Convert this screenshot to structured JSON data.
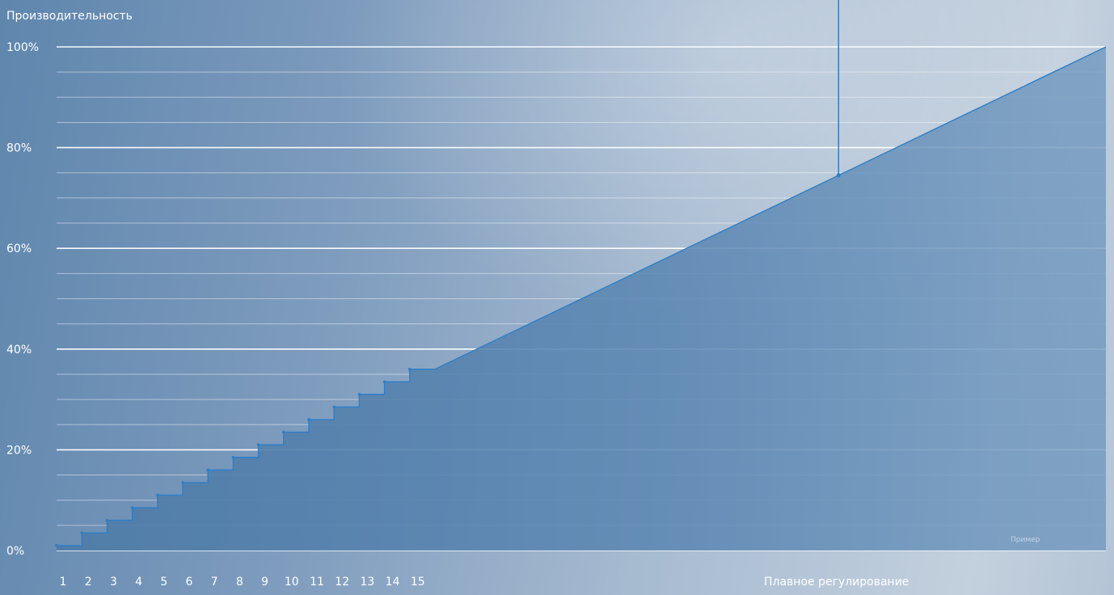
{
  "chart_data": {
    "type": "area",
    "title": "",
    "ylabel": "Производительность",
    "xlabel": "Плавное регулирование",
    "ylim": [
      0,
      100
    ],
    "yticks": [
      "0%",
      "20%",
      "40%",
      "60%",
      "80%",
      "100%"
    ],
    "step_labels": [
      "1",
      "2",
      "3",
      "4",
      "5",
      "6",
      "7",
      "8",
      "9",
      "10",
      "11",
      "12",
      "13",
      "14",
      "15"
    ],
    "step_values": [
      1,
      3.5,
      6,
      8.5,
      11,
      13.5,
      16,
      18.5,
      21,
      23.5,
      26,
      28.5,
      31,
      33.5,
      36
    ],
    "linear_segment": {
      "from": 36,
      "to": 100
    },
    "annotation_value": 74.5,
    "note": "Пример",
    "grid": true,
    "colors": {
      "fill": "#5a85b0",
      "line": "#2c7fc9",
      "grid": "#ffffff"
    }
  }
}
